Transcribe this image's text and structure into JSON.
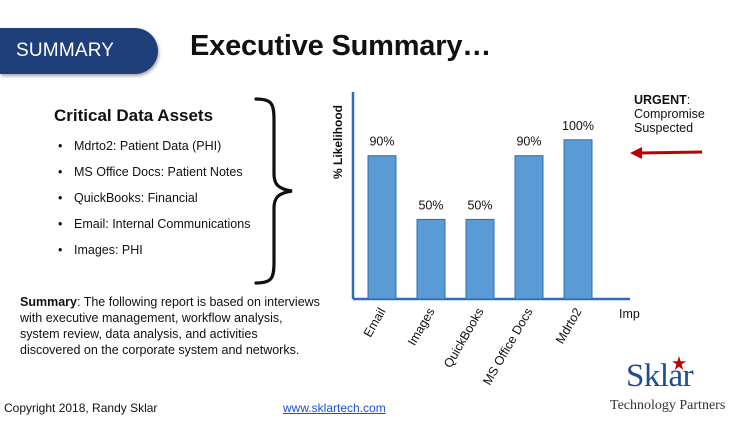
{
  "badge": "SUMMARY",
  "title": "Executive Summary…",
  "assets": {
    "heading": "Critical Data Assets",
    "bullet": "•",
    "items": [
      "Mdrto2: Patient Data (PHI)",
      "MS Office Docs: Patient Notes",
      "QuickBooks: Financial",
      "Email: Internal Communications",
      "Images: PHI"
    ]
  },
  "summary": {
    "label": "Summary",
    "text": ": The following report is based on interviews with executive management, workflow analysis, system review, data analysis, and activities discovered on the corporate system and networks."
  },
  "urgent": {
    "keyword": "URGENT",
    "after": ":",
    "line2": "Compromise",
    "line3": "Suspected"
  },
  "footer": {
    "copyright": "Copyright 2018, Randy Sklar",
    "website": "www.sklartech.com"
  },
  "logo": {
    "word": "Sklar",
    "tagline": "Technology Partners"
  },
  "colors": {
    "badge": "#1f3f7a",
    "bar": "#5b9bd5",
    "bar_edge": "#2e6db4",
    "axis": "#2e6db4",
    "arrow": "#c00000"
  },
  "chart_data": {
    "type": "bar",
    "categories": [
      "Email",
      "Images",
      "QuickBooks",
      "MS Office Docs",
      "Mdrto2"
    ],
    "values": [
      90,
      50,
      50,
      90,
      100
    ],
    "value_labels": [
      "90%",
      "50%",
      "50%",
      "90%",
      "100%"
    ],
    "ylabel": "% Likelihood",
    "xlabel": "Impact",
    "ylim": [
      0,
      130
    ],
    "grid": false
  }
}
